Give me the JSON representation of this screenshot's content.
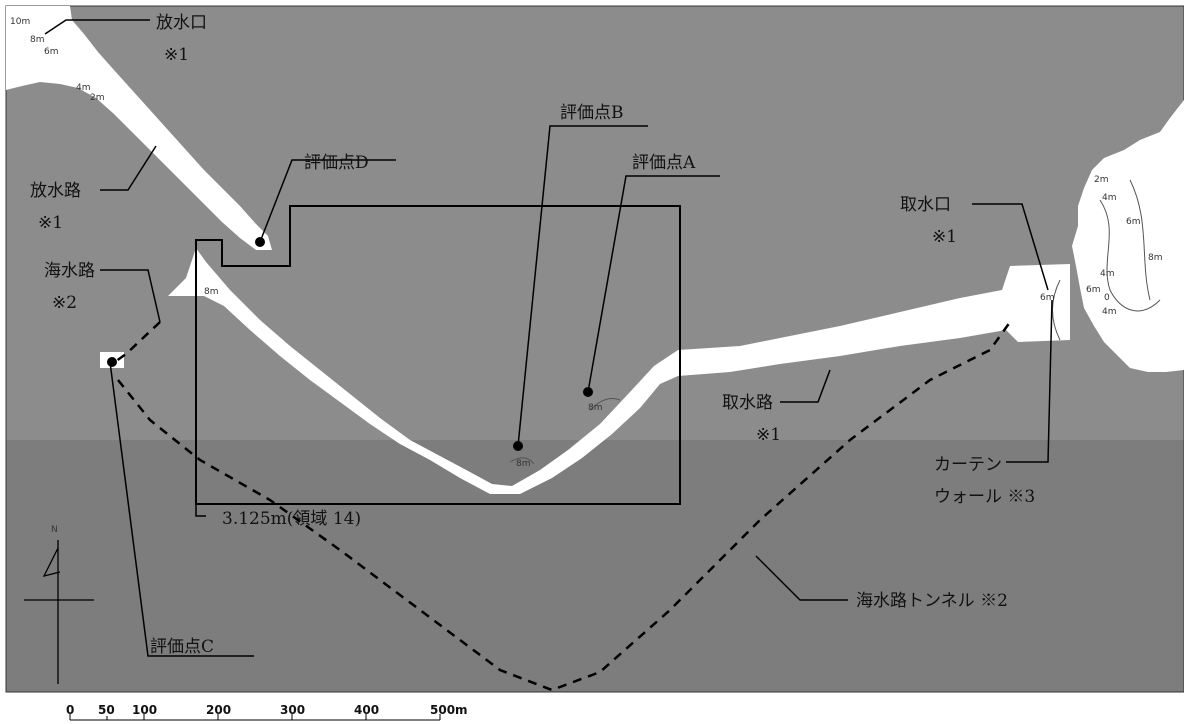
{
  "labels": {
    "outlet": "放水口",
    "outlet_note": "※1",
    "outlet_channel": "放水路",
    "outlet_channel_note": "※1",
    "seawater_channel": "海水路",
    "seawater_channel_note": "※2",
    "point_a": "評価点A",
    "point_b": "評価点B",
    "point_c": "評価点C",
    "point_d": "評価点D",
    "intake": "取水口",
    "intake_note": "※1",
    "intake_channel": "取水路",
    "intake_channel_note": "※1",
    "curtain_wall_1": "カーテン",
    "curtain_wall_2": "ウォール ※3",
    "tunnel": "海水路トンネル ※2",
    "region": "3.125m(領域 14)"
  },
  "contours": {
    "c10": "10m",
    "c8": "8m",
    "c6": "6m",
    "c4": "4m",
    "c2": "2m",
    "c0": "0"
  },
  "north": "N",
  "scale": {
    "ticks": [
      "0",
      "50",
      "100",
      "200",
      "300",
      "400",
      "500m"
    ]
  },
  "colors": {
    "sea_light": "#8c8c8c",
    "sea_dark": "#7d7d7d",
    "land": "#ffffff",
    "line": "#000000"
  }
}
